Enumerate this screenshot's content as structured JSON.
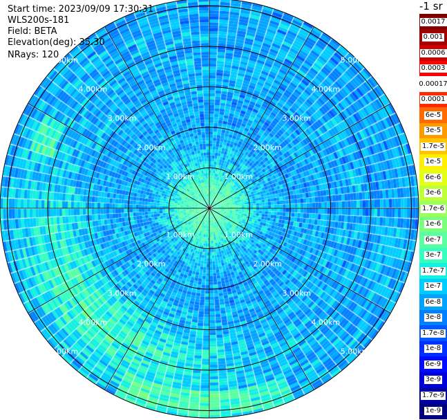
{
  "info": {
    "start_time": "Start time: 2023/09/09 17:30:31",
    "instrument": "WLS200s-181",
    "field": "Field: BETA",
    "elevation": "Elevation(deg): 35.30",
    "nrays": "NRays: 120"
  },
  "units_label": "-1 sr",
  "colorbar": {
    "labels": [
      "0.0017",
      "0.001",
      "0.0006",
      "0.0003",
      "0.00017",
      "0.0001",
      "6e-5",
      "3e-5",
      "1.7e-5",
      "1e-5",
      "6e-6",
      "3e-6",
      "1.7e-6",
      "1e-6",
      "6e-7",
      "3e-7",
      "1.7e-7",
      "1e-7",
      "6e-8",
      "3e-8",
      "1.7e-8",
      "1e-8",
      "6e-9",
      "3e-9",
      "1.7e-9",
      "1e-9"
    ],
    "colors": [
      "#7f0000",
      "#a50000",
      "#cc0000",
      "#ff0000",
      "#ffffff",
      "#ff2a00",
      "#ff6a00",
      "#ff9900",
      "#ffc400",
      "#ffee00",
      "#e4ff13",
      "#bfff37",
      "#9cff5a",
      "#7aff7d",
      "#5affa0",
      "#37ffc0",
      "#13f0e0",
      "#00ccff",
      "#00a4ff",
      "#0080ff",
      "#0058ff",
      "#0030ff",
      "#000cff",
      "#0000da",
      "#0000a8",
      "#00007f"
    ]
  },
  "range_rings": {
    "labels_km": [
      "1.00km",
      "2.00km",
      "3.00km",
      "4.00km",
      "5.00km"
    ]
  },
  "ppi": {
    "field": "BETA",
    "n_rays": 120,
    "max_range_km": 5.0,
    "palette": [
      "#0000c8",
      "#0030ff",
      "#0058ff",
      "#0080ff",
      "#00a4ff",
      "#00ccff",
      "#13f0e0",
      "#37ffc0",
      "#5affa0",
      "#7aff7d",
      "#9cff5a",
      "#bfff37"
    ]
  }
}
